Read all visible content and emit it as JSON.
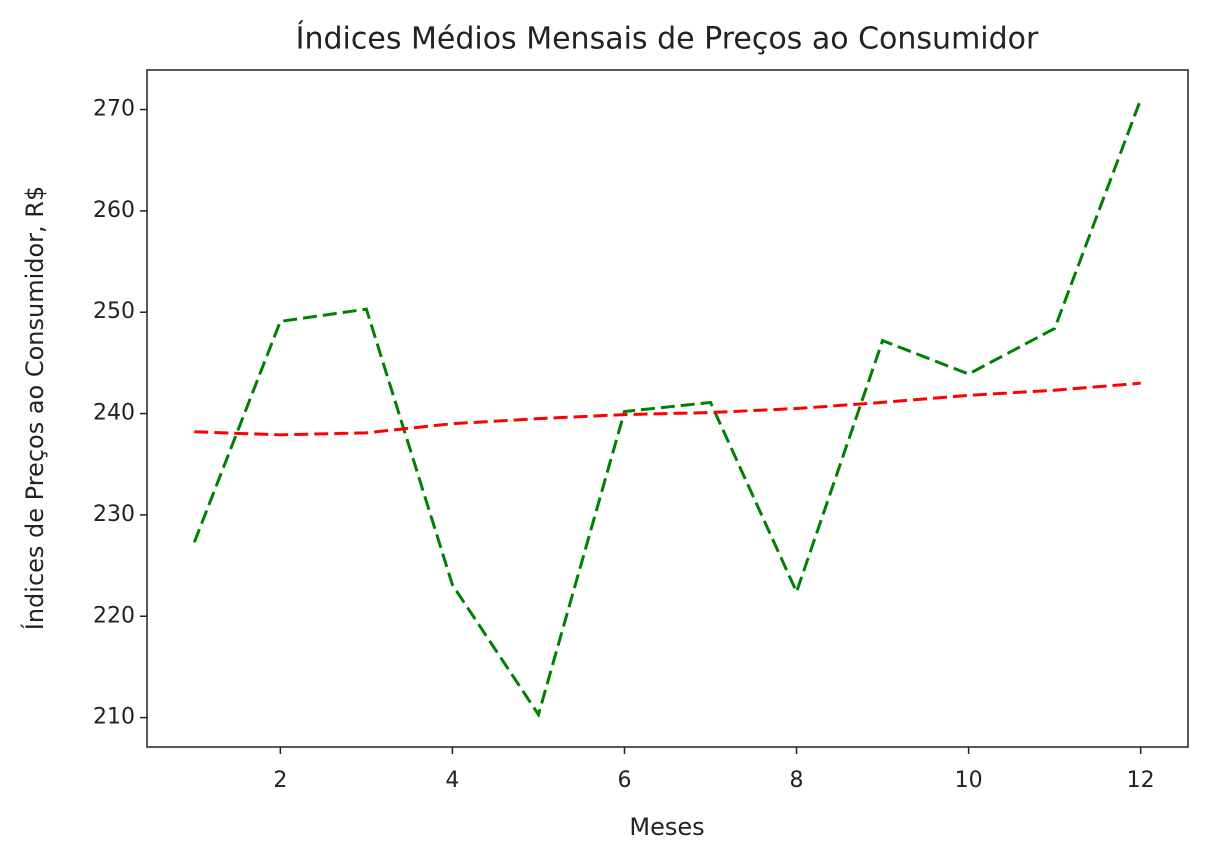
{
  "chart_data": {
    "type": "line",
    "title": "Índices Médios Mensais de Preços ao Consumidor",
    "x_label": "Meses",
    "y_label": "Índices de Preços ao Consumidor, R$",
    "x": [
      1,
      2,
      3,
      4,
      5,
      6,
      7,
      8,
      9,
      10,
      11,
      12
    ],
    "series": [
      {
        "color": "#008000",
        "values": [
          227.3,
          249.1,
          250.3,
          223.1,
          210.3,
          240.2,
          241.1,
          222.4,
          247.2,
          243.9,
          248.4,
          271.0
        ]
      },
      {
        "color": "#ff0000",
        "values": [
          238.2,
          237.9,
          238.1,
          239.0,
          239.5,
          239.9,
          240.1,
          240.5,
          241.1,
          241.8,
          242.3,
          243.0
        ]
      }
    ],
    "xlim": [
      0.45,
      12.55
    ],
    "xticks": [
      2,
      4,
      6,
      8,
      10,
      12
    ],
    "ylim": [
      207.1,
      273.9
    ],
    "yticks": [
      210,
      220,
      230,
      240,
      250,
      260,
      270
    ],
    "grid": false,
    "line_style": "dashed"
  }
}
